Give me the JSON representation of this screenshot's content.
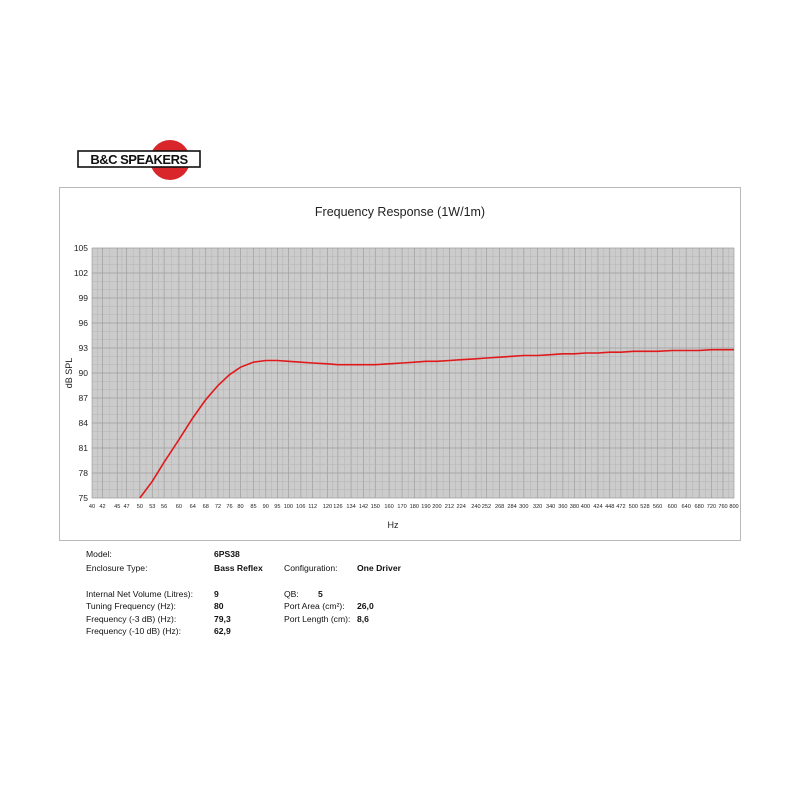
{
  "brand": {
    "logo_text": "B&C SPEAKERS"
  },
  "chart_data": {
    "type": "line",
    "title": "Frequency Response (1W/1m)",
    "xlabel": "Hz",
    "ylabel": "dB SPL",
    "x_scale": "log",
    "y_ticks": [
      "75",
      "78",
      "81",
      "84",
      "87",
      "90",
      "93",
      "96",
      "99",
      "102",
      "105"
    ],
    "ylim": [
      75,
      105
    ],
    "x_ticks": [
      "40",
      "42",
      "45",
      "47",
      "50",
      "53",
      "56",
      "60",
      "64",
      "68",
      "72",
      "76",
      "80",
      "85",
      "90",
      "95",
      "100",
      "106",
      "112",
      "120",
      "126",
      "134",
      "142",
      "150",
      "160",
      "170",
      "180",
      "190",
      "200",
      "212",
      "224",
      "240",
      "252",
      "268",
      "284",
      "300",
      "320",
      "340",
      "360",
      "380",
      "400",
      "424",
      "448",
      "472",
      "500",
      "528",
      "560",
      "600",
      "640",
      "680",
      "720",
      "760",
      "800"
    ],
    "grid": true,
    "background": "#cccccc",
    "line_color": "#e0191b",
    "series": [
      {
        "x": [
          50,
          53,
          56,
          60,
          64,
          68,
          72,
          76,
          80,
          85,
          90,
          95,
          100,
          106,
          112,
          120,
          126,
          134,
          142,
          150,
          160,
          170,
          180,
          190,
          200,
          212,
          224,
          240,
          252,
          268,
          284,
          300,
          320,
          340,
          360,
          380,
          400,
          424,
          448,
          472,
          500,
          528,
          560,
          600,
          640,
          680,
          720,
          760,
          800
        ],
        "y": [
          75.0,
          77.0,
          79.3,
          82.0,
          84.6,
          86.8,
          88.5,
          89.8,
          90.7,
          91.3,
          91.5,
          91.5,
          91.4,
          91.3,
          91.2,
          91.1,
          91.0,
          91.0,
          91.0,
          91.0,
          91.1,
          91.2,
          91.3,
          91.4,
          91.4,
          91.5,
          91.6,
          91.7,
          91.8,
          91.9,
          92.0,
          92.1,
          92.1,
          92.2,
          92.3,
          92.3,
          92.4,
          92.4,
          92.5,
          92.5,
          92.6,
          92.6,
          92.6,
          92.7,
          92.7,
          92.7,
          92.8,
          92.8,
          92.8
        ]
      }
    ]
  },
  "specs": {
    "model_label": "Model:",
    "model_value": "6PS38",
    "enclosure_label": "Enclosure Type:",
    "enclosure_value": "Bass Reflex",
    "configuration_label": "Configuration:",
    "configuration_value": "One Driver",
    "volume_label": "Internal Net Volume (Litres):",
    "volume_value": "9",
    "tuning_label": "Tuning Frequency (Hz):",
    "tuning_value": "80",
    "f3_label": "Frequency (-3 dB) (Hz):",
    "f3_value": "79,3",
    "f10_label": "Frequency (-10 dB) (Hz):",
    "f10_value": "62,9",
    "qb_label": "QB:",
    "qb_value": "5",
    "port_area_label": "Port Area (cm²):",
    "port_area_value": "26,0",
    "port_length_label": "Port Length (cm):",
    "port_length_value": "8,6"
  }
}
